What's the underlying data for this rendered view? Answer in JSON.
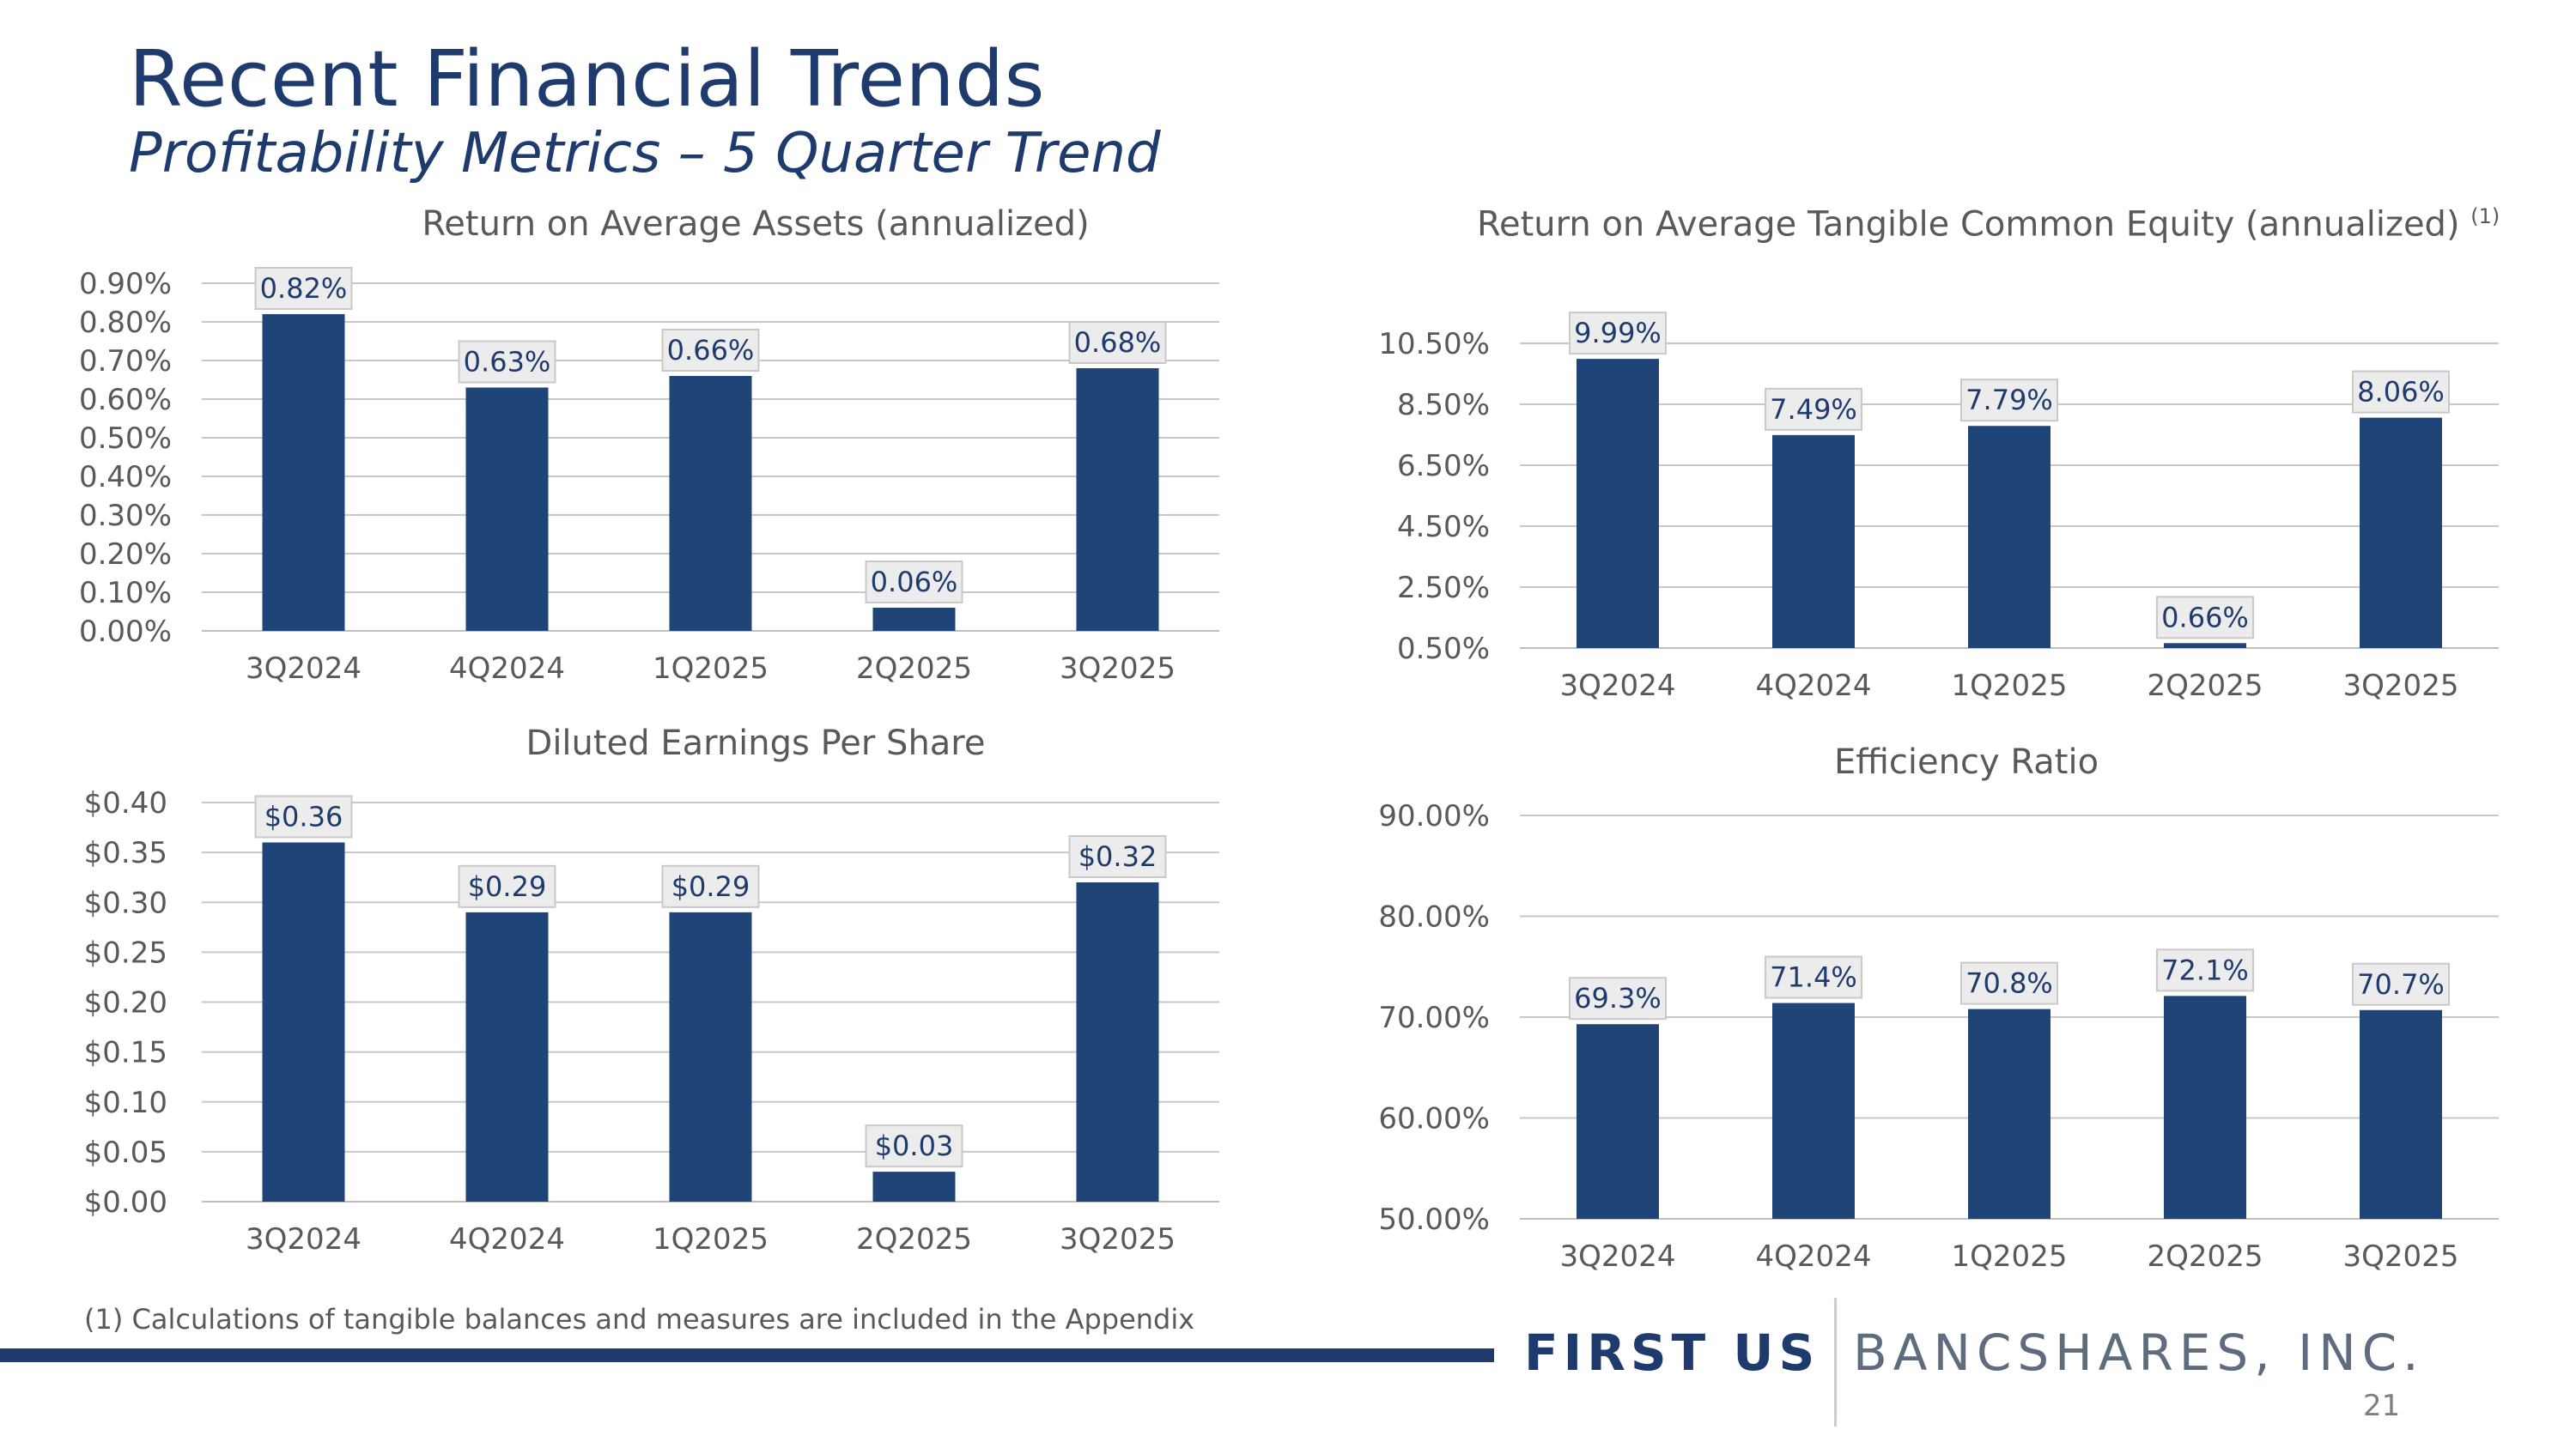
{
  "header": {
    "title": "Recent Financial Trends",
    "subtitle": "Profitability Metrics – 5 Quarter Trend"
  },
  "chart_data": [
    {
      "type": "bar",
      "title": "Return on Average Assets (annualized)",
      "categories": [
        "3Q2024",
        "4Q2024",
        "1Q2025",
        "2Q2025",
        "3Q2025"
      ],
      "values": [
        0.82,
        0.63,
        0.66,
        0.06,
        0.68
      ],
      "data_labels": [
        "0.82%",
        "0.63%",
        "0.66%",
        "0.06%",
        "0.68%"
      ],
      "yticks": [
        0.0,
        0.1,
        0.2,
        0.3,
        0.4,
        0.5,
        0.6,
        0.7,
        0.8,
        0.9
      ],
      "ytick_labels": [
        "0.00%",
        "0.10%",
        "0.20%",
        "0.30%",
        "0.40%",
        "0.50%",
        "0.60%",
        "0.70%",
        "0.80%",
        "0.90%"
      ],
      "ylim": [
        0,
        0.9
      ],
      "color": "#1f4478"
    },
    {
      "type": "bar",
      "title": "Return on Average Tangible Common Equity (annualized)",
      "title_note": "(1)",
      "categories": [
        "3Q2024",
        "4Q2024",
        "1Q2025",
        "2Q2025",
        "3Q2025"
      ],
      "values": [
        9.99,
        7.49,
        7.79,
        0.66,
        8.06
      ],
      "data_labels": [
        "9.99%",
        "7.49%",
        "7.79%",
        "0.66%",
        "8.06%"
      ],
      "yticks": [
        0.5,
        2.5,
        4.5,
        6.5,
        8.5,
        10.5
      ],
      "ytick_labels": [
        "0.50%",
        "2.50%",
        "4.50%",
        "6.50%",
        "8.50%",
        "10.50%"
      ],
      "ylim": [
        0.5,
        10.5
      ],
      "color": "#1f4478"
    },
    {
      "type": "bar",
      "title": "Diluted Earnings Per Share",
      "categories": [
        "3Q2024",
        "4Q2024",
        "1Q2025",
        "2Q2025",
        "3Q2025"
      ],
      "values": [
        0.36,
        0.29,
        0.29,
        0.03,
        0.32
      ],
      "data_labels": [
        "$0.36",
        "$0.29",
        "$0.29",
        "$0.03",
        "$0.32"
      ],
      "yticks": [
        0.0,
        0.05,
        0.1,
        0.15,
        0.2,
        0.25,
        0.3,
        0.35,
        0.4
      ],
      "ytick_labels": [
        "$0.00",
        "$0.05",
        "$0.10",
        "$0.15",
        "$0.20",
        "$0.25",
        "$0.30",
        "$0.35",
        "$0.40"
      ],
      "ylim": [
        0,
        0.4
      ],
      "color": "#1f4478"
    },
    {
      "type": "bar",
      "title": "Efficiency Ratio",
      "categories": [
        "3Q2024",
        "4Q2024",
        "1Q2025",
        "2Q2025",
        "3Q2025"
      ],
      "values": [
        69.3,
        71.4,
        70.8,
        72.1,
        70.7
      ],
      "data_labels": [
        "69.3%",
        "71.4%",
        "70.8%",
        "72.1%",
        "70.7%"
      ],
      "yticks": [
        50,
        60,
        70,
        80,
        90
      ],
      "ytick_labels": [
        "50.00%",
        "60.00%",
        "70.00%",
        "80.00%",
        "90.00%"
      ],
      "ylim": [
        50,
        90
      ],
      "color": "#1f4478"
    }
  ],
  "footer": {
    "footnote": "(1) Calculations of tangible balances and measures are included in the Appendix",
    "logo_left": "FIRST US",
    "logo_right": "BANCSHARES, INC.",
    "page_number": "21"
  }
}
